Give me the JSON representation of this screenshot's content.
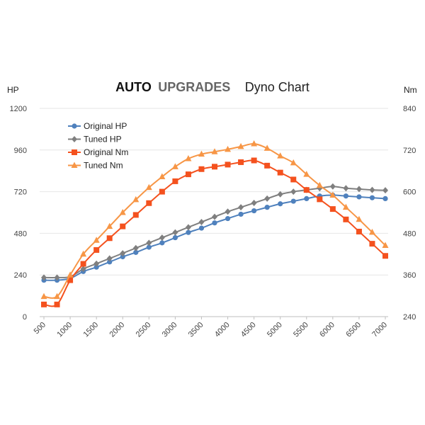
{
  "chart_data": {
    "type": "line",
    "title": {
      "brand_part1": "AUTO",
      "brand_part2": "UPGRADES",
      "subtitle": "Dyno Chart"
    },
    "colors": {
      "brand_part1": "#111111",
      "brand_part2": "#666666"
    },
    "left_axis": {
      "label": "HP",
      "range": [
        0,
        1200
      ],
      "ticks": [
        0,
        240,
        480,
        720,
        960,
        1200
      ]
    },
    "right_axis": {
      "label": "Nm",
      "range": [
        240,
        840
      ],
      "ticks": [
        240,
        360,
        480,
        600,
        720,
        840
      ]
    },
    "x_ticks": [
      500,
      1000,
      1500,
      2000,
      2500,
      3000,
      3500,
      4000,
      4500,
      5000,
      5500,
      6000,
      6500,
      7000
    ],
    "x_range": [
      500,
      7000
    ],
    "grid": true,
    "legend_position": "top-left",
    "series": [
      {
        "name": "Original HP",
        "axis": "left",
        "color": "#4f81bd",
        "marker": "circle",
        "x": [
          500,
          750,
          1000,
          1250,
          1500,
          1750,
          2000,
          2250,
          2500,
          2750,
          3000,
          3250,
          3500,
          3750,
          4000,
          4250,
          4500,
          4750,
          5000,
          5250,
          5500,
          5750,
          6000,
          6250,
          6500,
          6750,
          7000
        ],
        "values": [
          210,
          210,
          220,
          260,
          285,
          315,
          345,
          370,
          400,
          425,
          455,
          485,
          510,
          540,
          565,
          590,
          610,
          630,
          650,
          665,
          680,
          695,
          700,
          695,
          690,
          685,
          680
        ]
      },
      {
        "name": "Tuned HP",
        "axis": "left",
        "color": "#7f7f7f",
        "marker": "diamond",
        "x": [
          500,
          750,
          1000,
          1250,
          1500,
          1750,
          2000,
          2250,
          2500,
          2750,
          3000,
          3250,
          3500,
          3750,
          4000,
          4250,
          4500,
          4750,
          5000,
          5250,
          5500,
          5750,
          6000,
          6250,
          6500,
          6750,
          7000
        ],
        "values": [
          225,
          225,
          230,
          275,
          305,
          335,
          365,
          395,
          425,
          455,
          485,
          515,
          545,
          575,
          605,
          630,
          655,
          680,
          705,
          720,
          730,
          740,
          750,
          740,
          735,
          730,
          728
        ]
      },
      {
        "name": "Original Nm",
        "axis": "right",
        "color": "#f4511e",
        "marker": "square",
        "x": [
          500,
          750,
          1000,
          1250,
          1500,
          1750,
          2000,
          2250,
          2500,
          2750,
          3000,
          3250,
          3500,
          3750,
          4000,
          4250,
          4500,
          4750,
          5000,
          5250,
          5500,
          5750,
          6000,
          6250,
          6500,
          6750,
          7000
        ],
        "values": [
          275,
          275,
          345,
          392,
          432,
          466,
          500,
          533,
          567,
          600,
          630,
          650,
          665,
          672,
          678,
          685,
          690,
          675,
          655,
          635,
          605,
          578,
          550,
          520,
          485,
          450,
          415
        ]
      },
      {
        "name": "Tuned Nm",
        "axis": "right",
        "color": "#f79646",
        "marker": "triangle",
        "x": [
          500,
          750,
          1000,
          1250,
          1500,
          1750,
          2000,
          2250,
          2500,
          2750,
          3000,
          3250,
          3500,
          3750,
          4000,
          4250,
          4500,
          4750,
          5000,
          5250,
          5500,
          5750,
          6000,
          6250,
          6500,
          6750,
          7000
        ],
        "values": [
          298,
          298,
          360,
          420,
          460,
          500,
          540,
          577,
          612,
          643,
          672,
          695,
          708,
          715,
          722,
          730,
          738,
          725,
          703,
          683,
          650,
          618,
          590,
          555,
          520,
          483,
          445
        ]
      }
    ]
  }
}
